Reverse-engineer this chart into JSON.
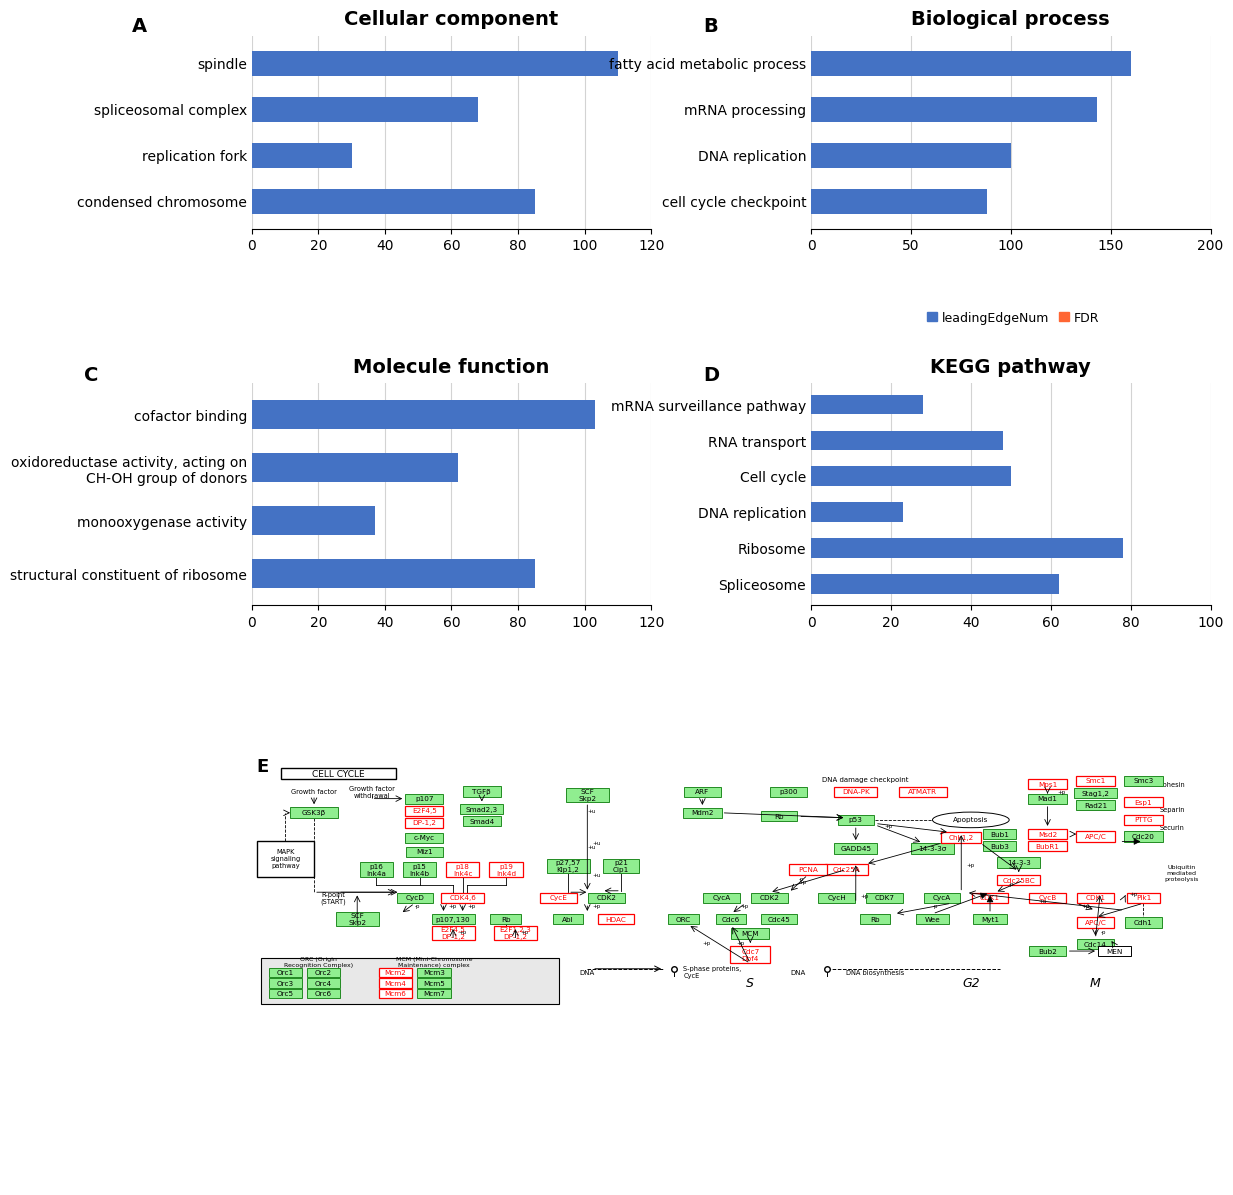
{
  "panel_A": {
    "title": "Cellular component",
    "label": "A",
    "categories": [
      "spindle",
      "spliceosomal complex",
      "replication fork",
      "condensed chromosome"
    ],
    "values": [
      110,
      68,
      30,
      85
    ],
    "xlim": [
      0,
      120
    ],
    "xticks": [
      0,
      20,
      40,
      60,
      80,
      100,
      120
    ]
  },
  "panel_B": {
    "title": "Biological process",
    "label": "B",
    "categories": [
      "fatty acid metabolic process",
      "mRNA processing",
      "DNA replication",
      "cell cycle checkpoint"
    ],
    "values": [
      160,
      143,
      100,
      88
    ],
    "xlim": [
      0,
      200
    ],
    "xticks": [
      0,
      50,
      100,
      150,
      200
    ]
  },
  "panel_C": {
    "title": "Molecule function",
    "label": "C",
    "categories": [
      "cofactor binding",
      "oxidoreductase activity, acting on\nCH-OH group of donors",
      "monooxygenase activity",
      "structural constituent of ribosome"
    ],
    "values": [
      103,
      62,
      37,
      85
    ],
    "xlim": [
      0,
      120
    ],
    "xticks": [
      0,
      20,
      40,
      60,
      80,
      100,
      120
    ]
  },
  "panel_D": {
    "title": "KEGG pathway",
    "label": "D",
    "categories": [
      "mRNA surveillance pathway",
      "RNA transport",
      "Cell cycle",
      "DNA replication",
      "Ribosome",
      "Spliceosome"
    ],
    "values": [
      28,
      48,
      50,
      23,
      78,
      62
    ],
    "xlim": [
      0,
      100
    ],
    "xticks": [
      0,
      20,
      40,
      60,
      80,
      100
    ]
  },
  "bar_color": "#4472C4",
  "bar_color_fdr": "#FF6633",
  "legend_labels": [
    "leadingEdgeNum",
    "FDR"
  ],
  "background_color": "#FFFFFF",
  "title_fontsize": 14,
  "label_fontsize": 14,
  "tick_fontsize": 10,
  "category_fontsize": 10,
  "bar_height": 0.55
}
